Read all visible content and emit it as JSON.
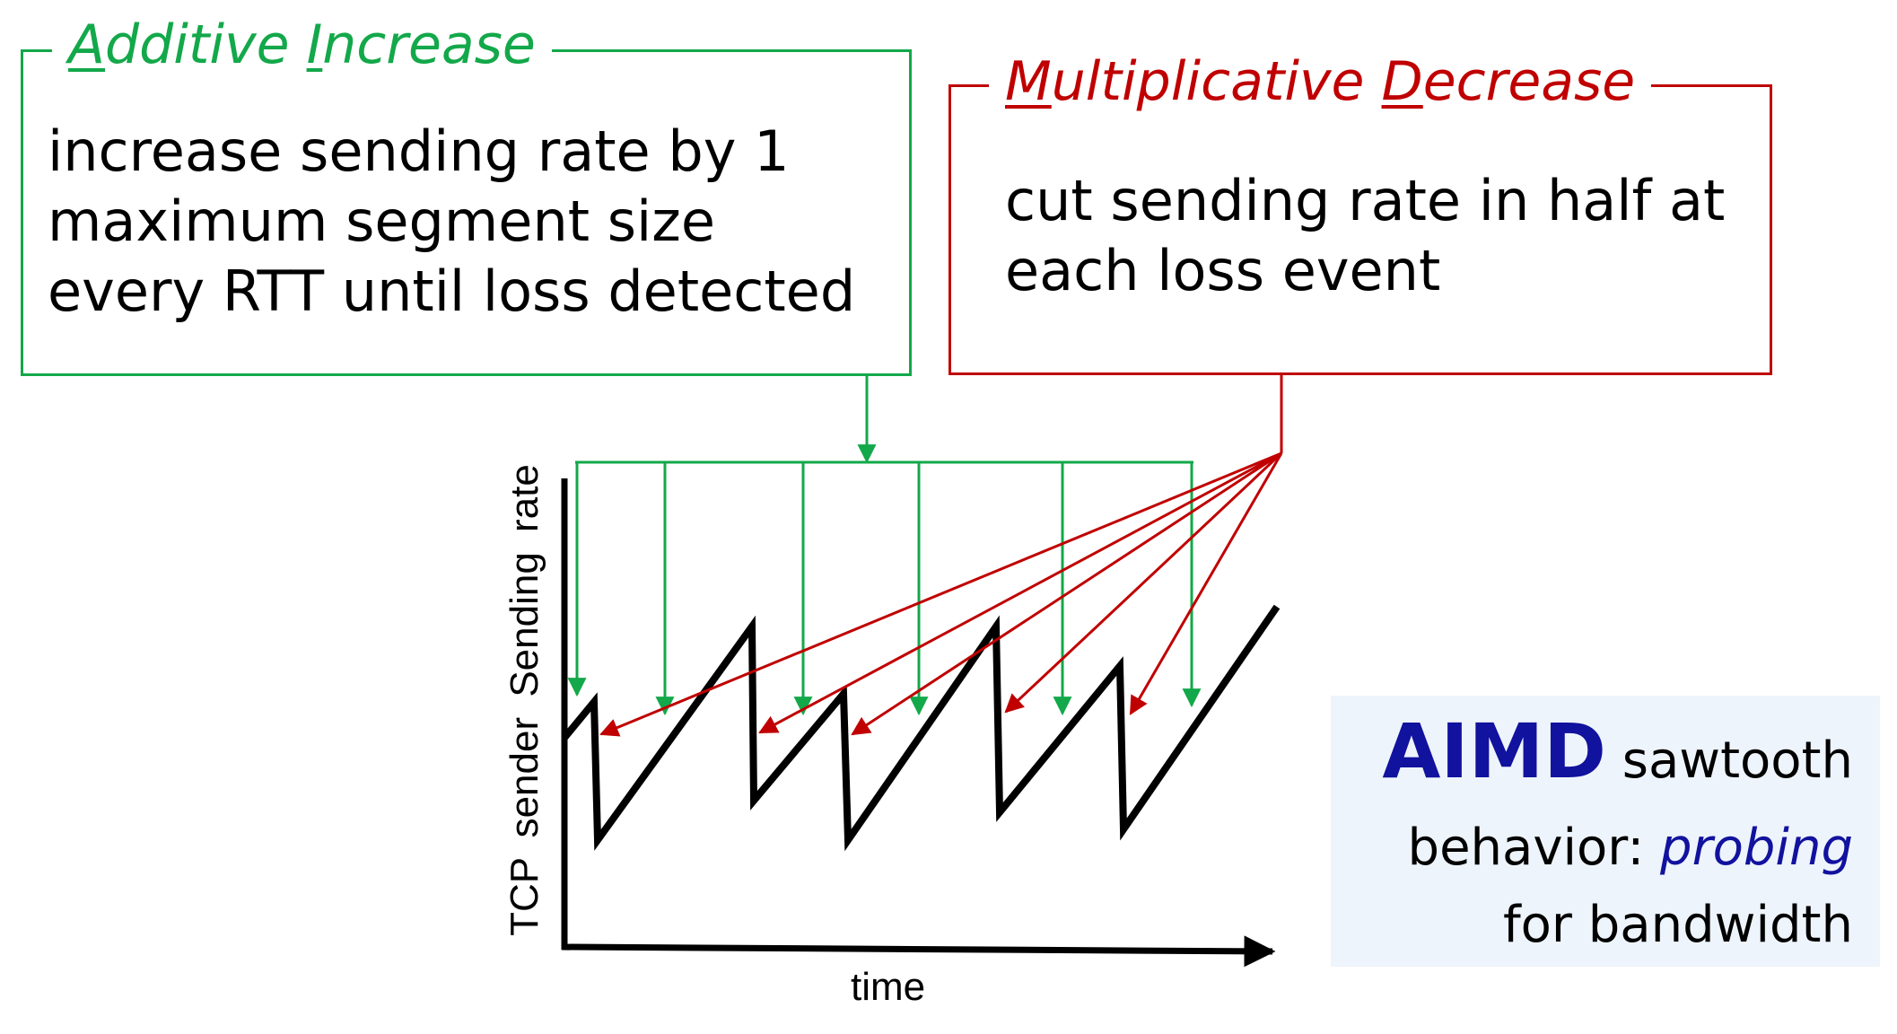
{
  "additive_increase": {
    "title_initial_1": "A",
    "title_rest_1": "dditive ",
    "title_initial_2": "I",
    "title_rest_2": "ncrease",
    "body_lines": [
      "increase sending rate by 1",
      "maximum segment size",
      "every RTT until loss detected"
    ],
    "color": "#13a84a"
  },
  "multiplicative_decrease": {
    "title_initial_1": "M",
    "title_rest_1": "ultiplicative ",
    "title_initial_2": "D",
    "title_rest_2": "ecrease",
    "body_lines": [
      "cut sending rate in half at",
      "each loss event"
    ],
    "color": "#c00000"
  },
  "axes": {
    "y_label": "TCP sender  Sending rate",
    "x_label": "time"
  },
  "aimd_note": {
    "strong": "AIMD",
    "line1_rest": " sawtooth",
    "line2_prefix": "behavior: ",
    "line2_emphasis": "probing",
    "line3": "for bandwidth",
    "accent_color": "#11129e",
    "background": "#eef4fb"
  }
}
